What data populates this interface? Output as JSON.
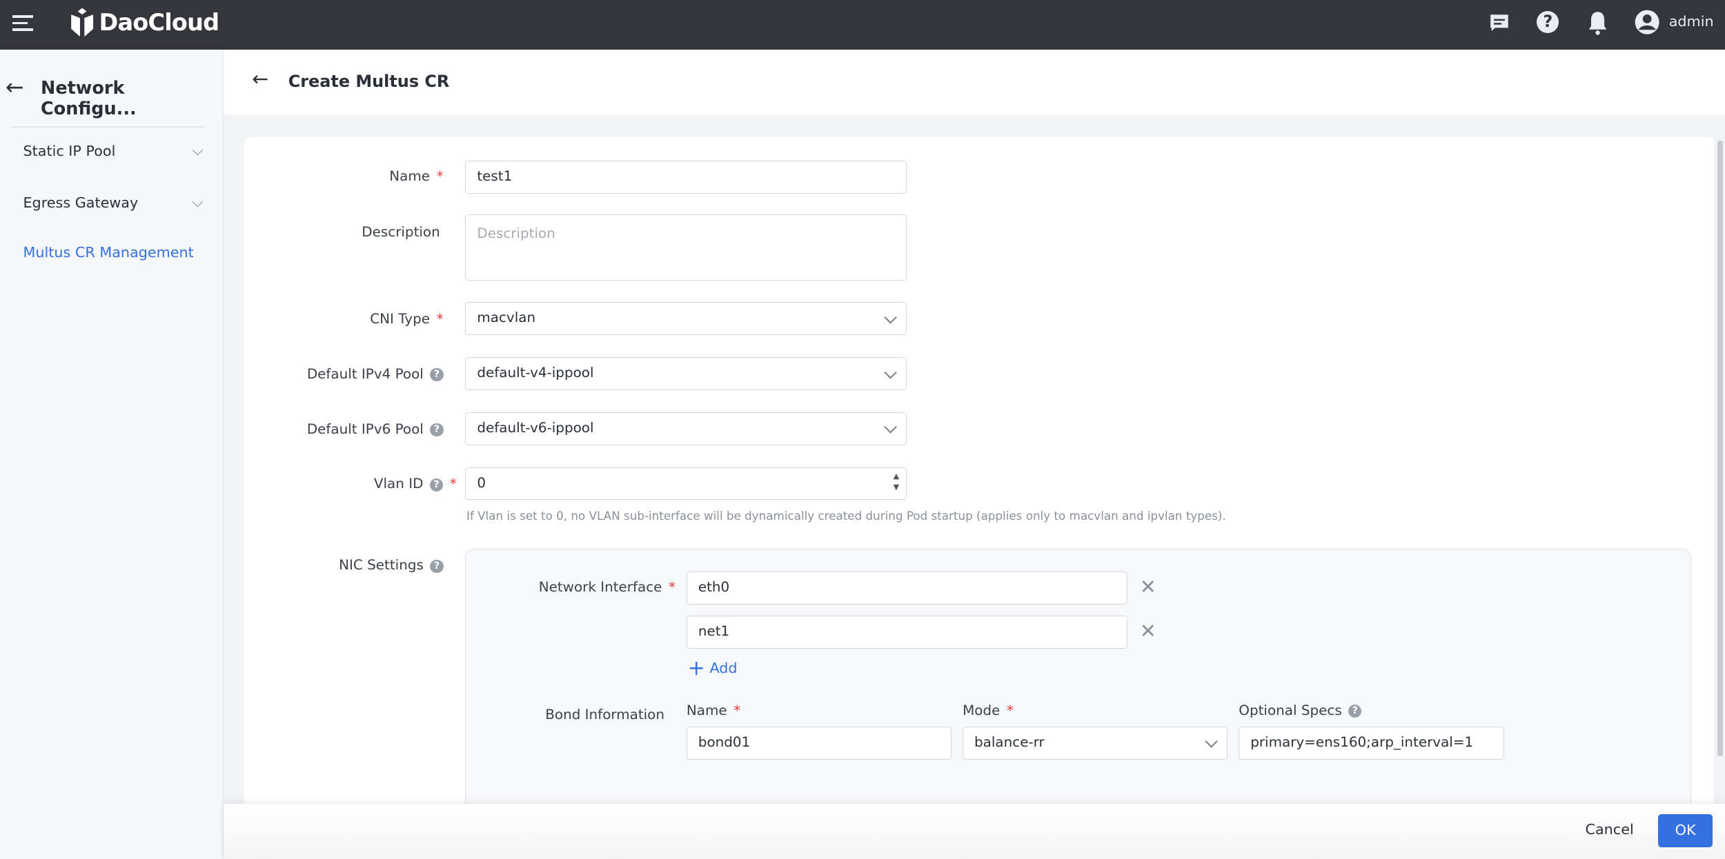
{
  "topbar": {
    "brand": "DaoCloud",
    "user": "admin",
    "icons": [
      "menu-icon",
      "message-icon",
      "help-icon",
      "bell-icon",
      "user-avatar-icon"
    ]
  },
  "sidebar": {
    "title": "Network Configu...",
    "items": [
      {
        "label": "Static IP Pool"
      },
      {
        "label": "Egress Gateway"
      },
      {
        "label": "Multus CR Management",
        "active": true
      }
    ]
  },
  "page": {
    "title": "Create Multus CR"
  },
  "form": {
    "name": {
      "label": "Name",
      "value": "test1"
    },
    "description": {
      "label": "Description",
      "placeholder": "Description"
    },
    "cni_type": {
      "label": "CNI Type",
      "value": "macvlan"
    },
    "ipv4_pool": {
      "label": "Default IPv4 Pool",
      "value": "default-v4-ippool"
    },
    "ipv6_pool": {
      "label": "Default IPv6 Pool",
      "value": "default-v6-ippool"
    },
    "vlan": {
      "label": "Vlan ID",
      "value": "0",
      "hint": "If Vlan is set to 0, no VLAN sub-interface will be dynamically created during Pod startup (applies only to macvlan and ipvlan types)."
    },
    "nic": {
      "label": "NIC Settings",
      "interface_label": "Network Interface",
      "interfaces": [
        "eth0",
        "net1"
      ],
      "add_label": "Add",
      "bond": {
        "label": "Bond Information",
        "name_label": "Name",
        "name_value": "bond01",
        "mode_label": "Mode",
        "mode_value": "balance-rr",
        "specs_label": "Optional Specs",
        "specs_value": "primary=ens160;arp_interval=1"
      }
    }
  },
  "footer": {
    "cancel": "Cancel",
    "ok": "OK"
  },
  "colors": {
    "accent": "#3370e0",
    "topbar": "#35363b",
    "required": "#e0383e"
  }
}
